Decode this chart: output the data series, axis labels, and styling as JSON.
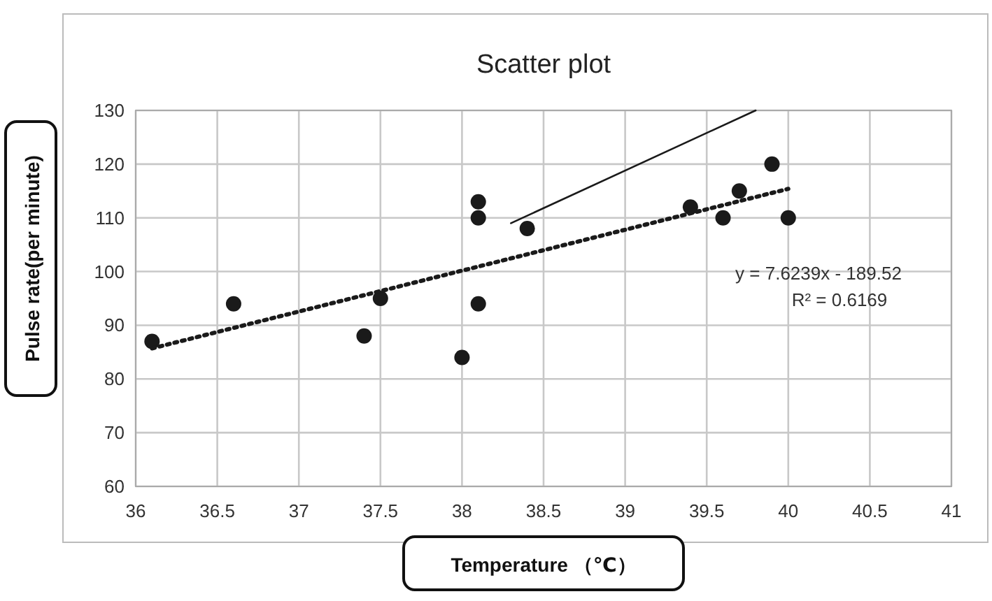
{
  "chart_data": {
    "type": "scatter",
    "title": "Scatter plot",
    "xlabel": "Temperature （℃）",
    "ylabel": "Pulse rate(per minute)",
    "annotations": [
      "y = 7.6239x - 189.52",
      "R² = 0.6169"
    ],
    "series": [
      {
        "color": "#1a1a1a",
        "marker": "circle",
        "x": [
          36.1,
          36.6,
          37.4,
          37.5,
          38,
          38.1,
          38.1,
          38.1,
          38.4,
          39.4,
          39.6,
          39.7,
          39.9,
          40
        ],
        "values": [
          87,
          94,
          88,
          95,
          84,
          113,
          110,
          94,
          108,
          112,
          110,
          115,
          120,
          110
        ]
      },
      {
        "type": "line",
        "color": "#1a1a1a",
        "line_style": "dotted",
        "x": [
          36.1,
          40
        ],
        "values": [
          85.7,
          115.4
        ]
      },
      {
        "type": "line",
        "color": "#1a1a1a",
        "line_style": "solid",
        "x": [
          38.3,
          39.8
        ],
        "values": [
          109,
          130
        ]
      }
    ],
    "xlim": [
      36,
      41
    ],
    "xticks": [
      36,
      36.5,
      37,
      37.5,
      38,
      38.5,
      39,
      39.5,
      40,
      40.5,
      41
    ],
    "ylim": [
      60,
      130
    ],
    "yticks": [
      60,
      70,
      80,
      90,
      100,
      110,
      120,
      130
    ],
    "grid": true
  }
}
